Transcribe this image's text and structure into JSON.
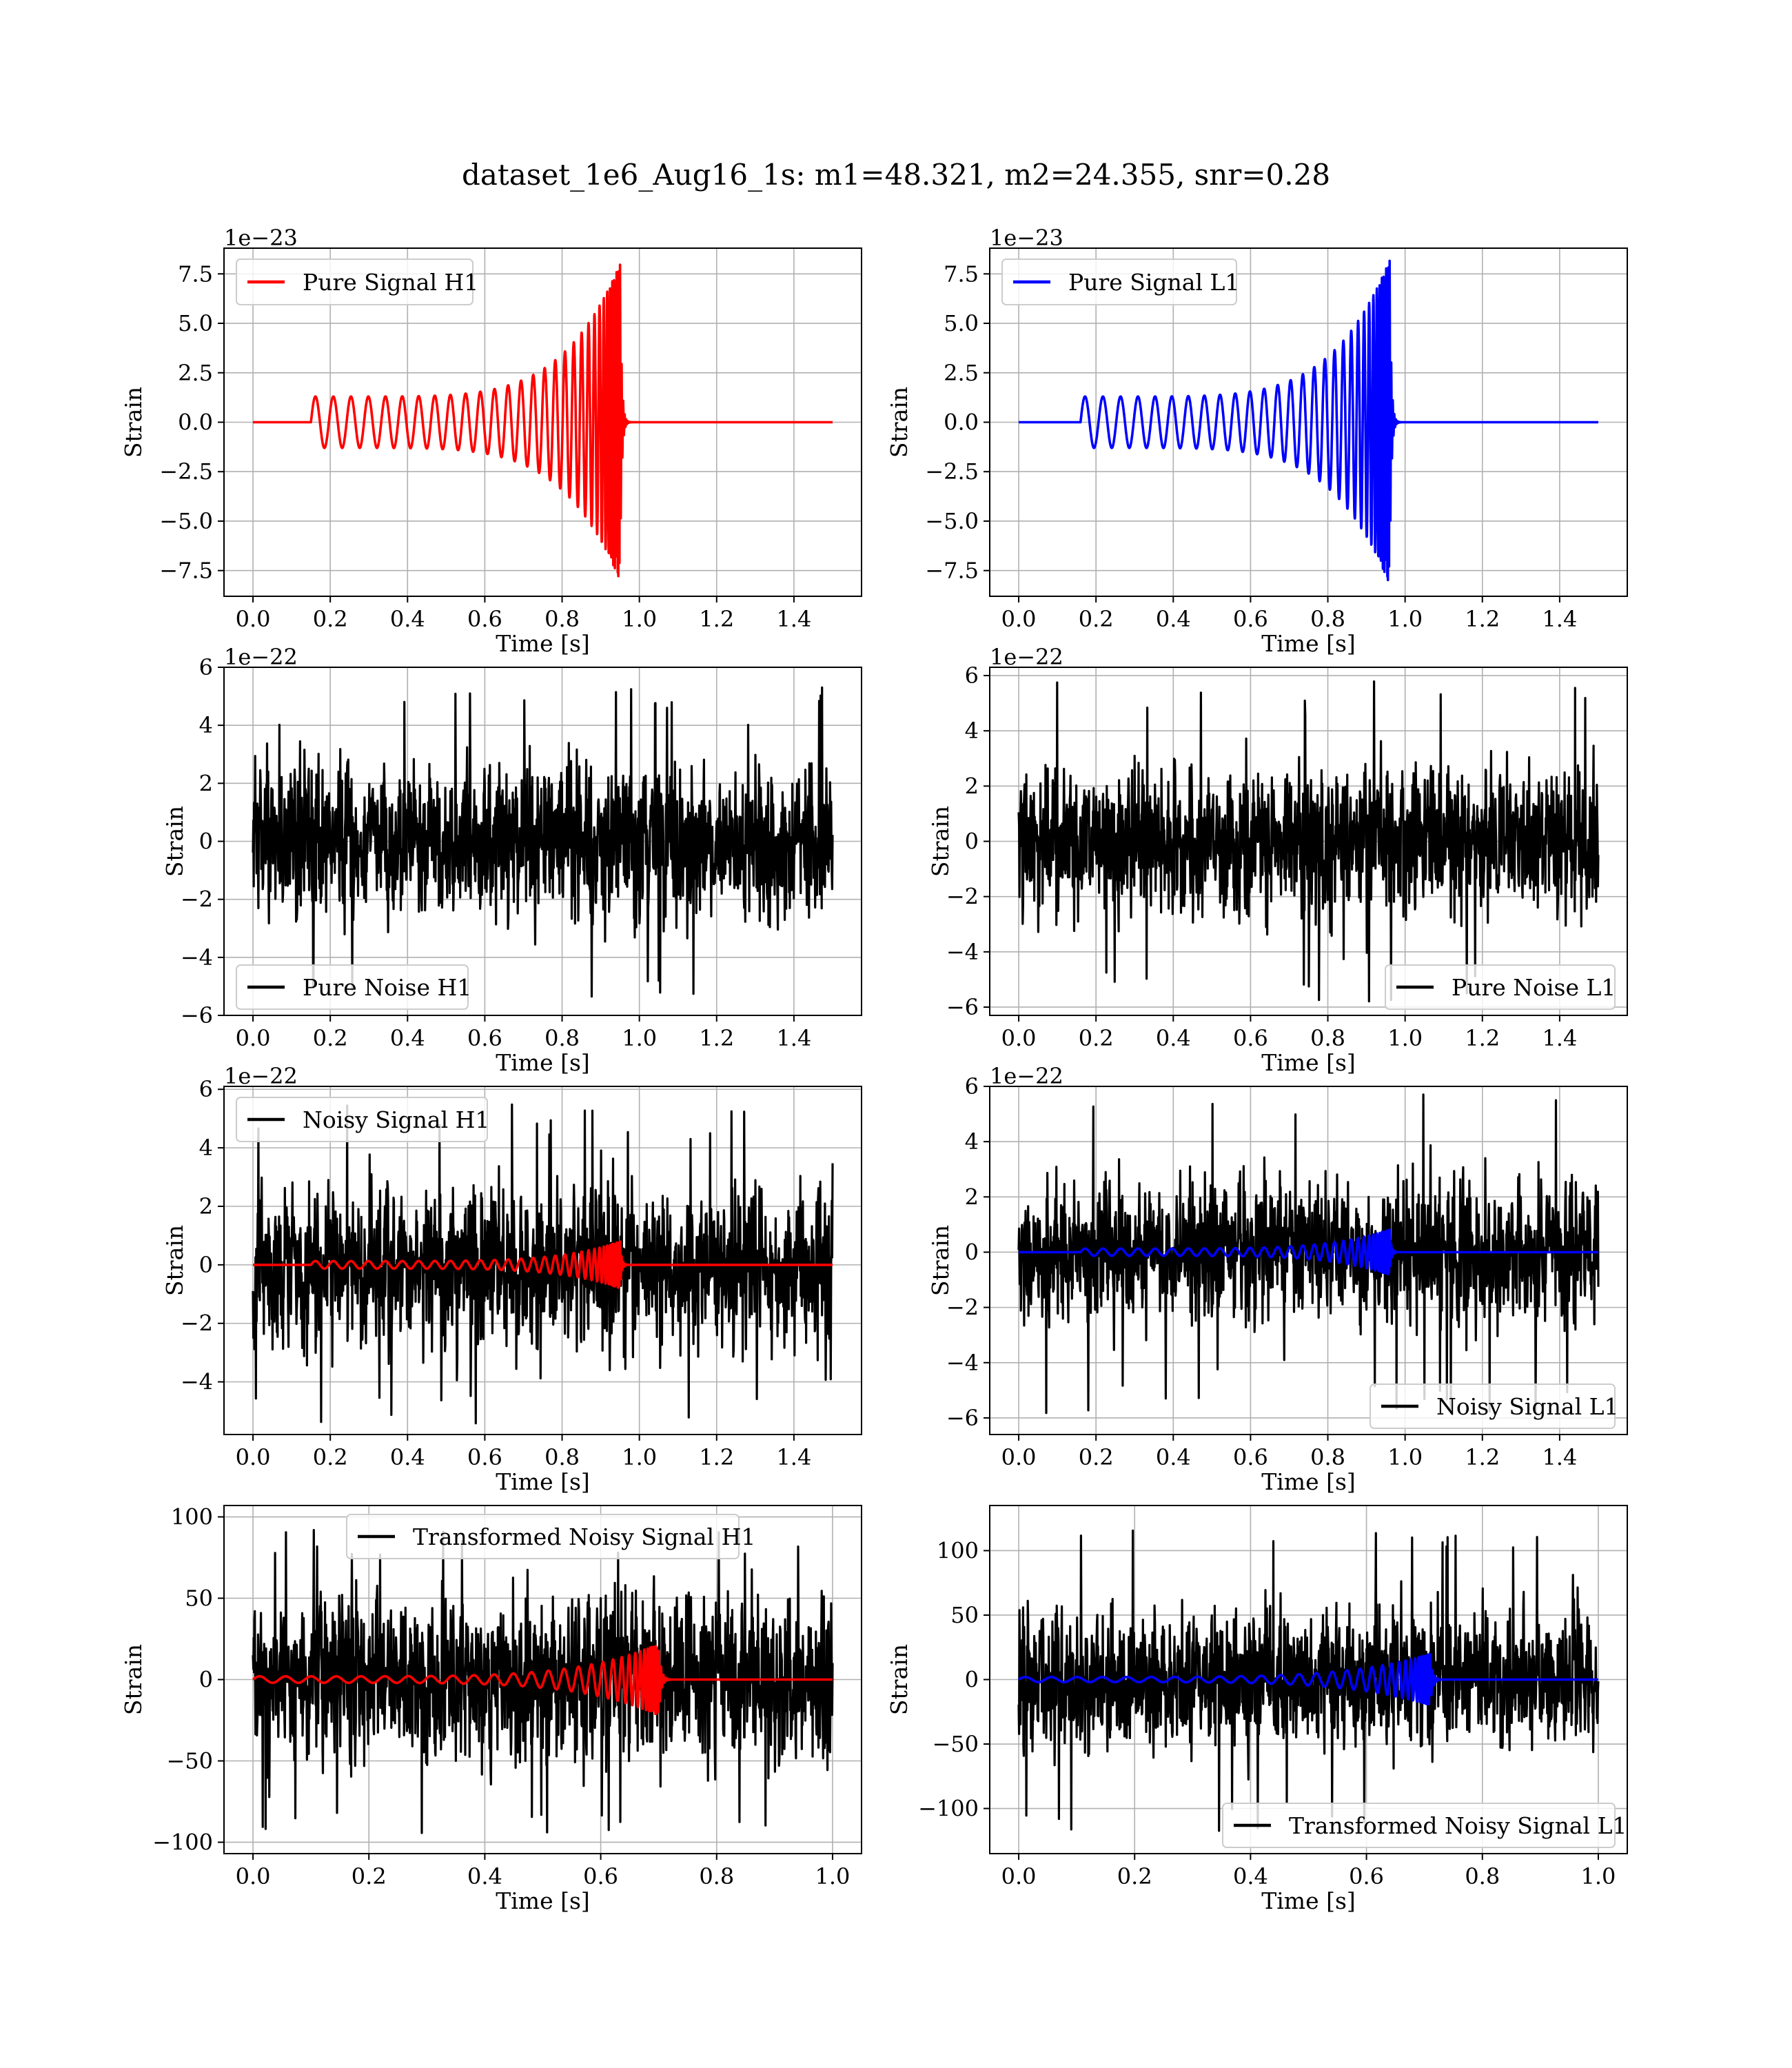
{
  "figure": {
    "title": "dataset_1e6_Aug16_1s: m1=48.321, m2=24.355, snr=0.28"
  },
  "colors": {
    "h1": "#ff0000",
    "l1": "#0000ff",
    "noise": "#000000"
  },
  "chart_data": [
    {
      "type": "line",
      "id": "pure-signal-h1",
      "xlabel": "Time [s]",
      "ylabel": "Strain",
      "offset_text": "1e−23",
      "xlim": [
        -0.075,
        1.575
      ],
      "ylim": [
        -8.8,
        8.8
      ],
      "xticks": [
        0.0,
        0.2,
        0.4,
        0.6,
        0.8,
        1.0,
        1.2,
        1.4
      ],
      "xtick_labels": [
        "0.0",
        "0.2",
        "0.4",
        "0.6",
        "0.8",
        "1.0",
        "1.2",
        "1.4"
      ],
      "yticks": [
        -7.5,
        -5.0,
        -2.5,
        0.0,
        2.5,
        5.0,
        7.5
      ],
      "ytick_labels": [
        "−7.5",
        "−5.0",
        "−2.5",
        "0.0",
        "2.5",
        "5.0",
        "7.5"
      ],
      "grid": true,
      "legend_position": "upper-left",
      "series": [
        {
          "name": "Pure Signal H1",
          "color": "#ff0000",
          "kind": "chirp",
          "t_start": 0.15,
          "t_merge": 0.95,
          "t_end": 1.5,
          "peak_amplitude": 8.0,
          "initial_amplitude": 1.3
        }
      ]
    },
    {
      "type": "line",
      "id": "pure-signal-l1",
      "xlabel": "Time [s]",
      "ylabel": "Strain",
      "offset_text": "1e−23",
      "xlim": [
        -0.075,
        1.575
      ],
      "ylim": [
        -8.8,
        8.8
      ],
      "xticks": [
        0.0,
        0.2,
        0.4,
        0.6,
        0.8,
        1.0,
        1.2,
        1.4
      ],
      "xtick_labels": [
        "0.0",
        "0.2",
        "0.4",
        "0.6",
        "0.8",
        "1.0",
        "1.2",
        "1.4"
      ],
      "yticks": [
        -7.5,
        -5.0,
        -2.5,
        0.0,
        2.5,
        5.0,
        7.5
      ],
      "ytick_labels": [
        "−7.5",
        "−5.0",
        "−2.5",
        "0.0",
        "2.5",
        "5.0",
        "7.5"
      ],
      "grid": true,
      "legend_position": "upper-left",
      "series": [
        {
          "name": "Pure Signal L1",
          "color": "#0000ff",
          "kind": "chirp",
          "t_start": 0.16,
          "t_merge": 0.96,
          "t_end": 1.5,
          "peak_amplitude": 8.2,
          "initial_amplitude": 1.3
        }
      ]
    },
    {
      "type": "line",
      "id": "pure-noise-h1",
      "xlabel": "Time [s]",
      "ylabel": "Strain",
      "offset_text": "1e−22",
      "xlim": [
        -0.075,
        1.575
      ],
      "ylim": [
        -6.0,
        6.0
      ],
      "xticks": [
        0.0,
        0.2,
        0.4,
        0.6,
        0.8,
        1.0,
        1.2,
        1.4
      ],
      "xtick_labels": [
        "0.0",
        "0.2",
        "0.4",
        "0.6",
        "0.8",
        "1.0",
        "1.2",
        "1.4"
      ],
      "yticks": [
        -6,
        -4,
        -2,
        0,
        2,
        4,
        6
      ],
      "ytick_labels": [
        "−6",
        "−4",
        "−2",
        "0",
        "2",
        "4",
        "6"
      ],
      "grid": true,
      "legend_position": "lower-left",
      "series": [
        {
          "name": "Pure Noise H1",
          "color": "#000000",
          "kind": "noise",
          "t_end": 1.5,
          "sigma": 1.5,
          "peak": 5.5
        }
      ]
    },
    {
      "type": "line",
      "id": "pure-noise-l1",
      "xlabel": "Time [s]",
      "ylabel": "Strain",
      "offset_text": "1e−22",
      "xlim": [
        -0.075,
        1.575
      ],
      "ylim": [
        -6.3,
        6.3
      ],
      "xticks": [
        0.0,
        0.2,
        0.4,
        0.6,
        0.8,
        1.0,
        1.2,
        1.4
      ],
      "xtick_labels": [
        "0.0",
        "0.2",
        "0.4",
        "0.6",
        "0.8",
        "1.0",
        "1.2",
        "1.4"
      ],
      "yticks": [
        -6,
        -4,
        -2,
        0,
        2,
        4,
        6
      ],
      "ytick_labels": [
        "−6",
        "−4",
        "−2",
        "0",
        "2",
        "4",
        "6"
      ],
      "grid": true,
      "legend_position": "lower-right",
      "series": [
        {
          "name": "Pure Noise L1",
          "color": "#000000",
          "kind": "noise",
          "t_end": 1.5,
          "sigma": 1.5,
          "peak": 5.8
        }
      ]
    },
    {
      "type": "line",
      "id": "noisy-signal-h1",
      "xlabel": "Time [s]",
      "ylabel": "Strain",
      "offset_text": "1e−22",
      "xlim": [
        -0.075,
        1.575
      ],
      "ylim": [
        -5.8,
        6.1
      ],
      "xticks": [
        0.0,
        0.2,
        0.4,
        0.6,
        0.8,
        1.0,
        1.2,
        1.4
      ],
      "xtick_labels": [
        "0.0",
        "0.2",
        "0.4",
        "0.6",
        "0.8",
        "1.0",
        "1.2",
        "1.4"
      ],
      "yticks": [
        -4,
        -2,
        0,
        2,
        4,
        6
      ],
      "ytick_labels": [
        "−4",
        "−2",
        "0",
        "2",
        "4",
        "6"
      ],
      "grid": true,
      "legend_position": "upper-left",
      "series": [
        {
          "name": "Noisy Signal H1",
          "color": "#000000",
          "kind": "noise",
          "t_end": 1.5,
          "sigma": 1.5,
          "peak": 5.6
        },
        {
          "color": "#ff0000",
          "kind": "chirp",
          "t_start": 0.15,
          "t_merge": 0.95,
          "t_end": 1.5,
          "peak_amplitude": 0.8,
          "initial_amplitude": 0.13
        }
      ]
    },
    {
      "type": "line",
      "id": "noisy-signal-l1",
      "xlabel": "Time [s]",
      "ylabel": "Strain",
      "offset_text": "1e−22",
      "xlim": [
        -0.075,
        1.575
      ],
      "ylim": [
        -6.6,
        6.0
      ],
      "xticks": [
        0.0,
        0.2,
        0.4,
        0.6,
        0.8,
        1.0,
        1.2,
        1.4
      ],
      "xtick_labels": [
        "0.0",
        "0.2",
        "0.4",
        "0.6",
        "0.8",
        "1.0",
        "1.2",
        "1.4"
      ],
      "yticks": [
        -6,
        -4,
        -2,
        0,
        2,
        4,
        6
      ],
      "ytick_labels": [
        "−6",
        "−4",
        "−2",
        "0",
        "2",
        "4",
        "6"
      ],
      "grid": true,
      "legend_position": "lower-right",
      "series": [
        {
          "name": "Noisy Signal L1",
          "color": "#000000",
          "kind": "noise",
          "t_end": 1.5,
          "sigma": 1.5,
          "peak": 6.1
        },
        {
          "color": "#0000ff",
          "kind": "chirp",
          "t_start": 0.16,
          "t_merge": 0.96,
          "t_end": 1.5,
          "peak_amplitude": 0.82,
          "initial_amplitude": 0.13
        }
      ]
    },
    {
      "type": "line",
      "id": "transformed-h1",
      "xlabel": "Time [s]",
      "ylabel": "Strain",
      "offset_text": "",
      "xlim": [
        -0.05,
        1.05
      ],
      "ylim": [
        -107,
        107
      ],
      "xticks": [
        0.0,
        0.2,
        0.4,
        0.6,
        0.8,
        1.0
      ],
      "xtick_labels": [
        "0.0",
        "0.2",
        "0.4",
        "0.6",
        "0.8",
        "1.0"
      ],
      "yticks": [
        -100,
        -50,
        0,
        50,
        100
      ],
      "ytick_labels": [
        "−100",
        "−50",
        "0",
        "50",
        "100"
      ],
      "grid": true,
      "legend_position": "upper-center",
      "series": [
        {
          "name": "Transformed Noisy Signal H1",
          "color": "#000000",
          "kind": "noise",
          "t_end": 1.0,
          "sigma": 30,
          "peak": 95
        },
        {
          "color": "#ff0000",
          "kind": "chirp",
          "t_start": 0.0,
          "t_merge": 0.7,
          "t_end": 1.0,
          "peak_amplitude": 22,
          "initial_amplitude": 2
        }
      ]
    },
    {
      "type": "line",
      "id": "transformed-l1",
      "xlabel": "Time [s]",
      "ylabel": "Strain",
      "offset_text": "",
      "xlim": [
        -0.05,
        1.05
      ],
      "ylim": [
        -135,
        135
      ],
      "xticks": [
        0.0,
        0.2,
        0.4,
        0.6,
        0.8,
        1.0
      ],
      "xtick_labels": [
        "0.0",
        "0.2",
        "0.4",
        "0.6",
        "0.8",
        "1.0"
      ],
      "yticks": [
        -100,
        -50,
        0,
        50,
        100
      ],
      "ytick_labels": [
        "−100",
        "−50",
        "0",
        "50",
        "100"
      ],
      "grid": true,
      "legend_position": "lower-right",
      "series": [
        {
          "name": "Transformed Noisy Signal L1",
          "color": "#000000",
          "kind": "noise",
          "t_end": 1.0,
          "sigma": 30,
          "peak": 118
        },
        {
          "color": "#0000ff",
          "kind": "chirp",
          "t_start": 0.0,
          "t_merge": 0.71,
          "t_end": 1.0,
          "peak_amplitude": 20,
          "initial_amplitude": 2
        }
      ]
    }
  ]
}
